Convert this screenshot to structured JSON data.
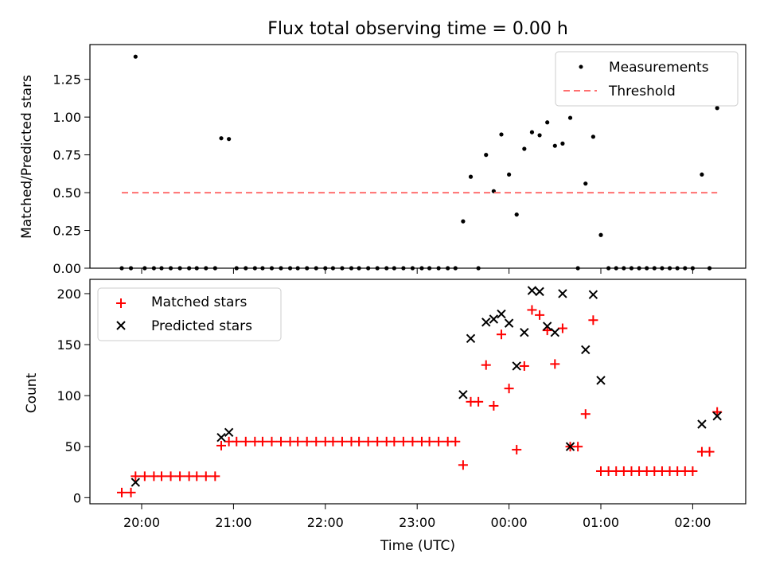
{
  "chart_data": [
    {
      "type": "scatter",
      "title": "Flux total observing time = 0.00 h",
      "xlabel": "",
      "ylabel": "Matched/Predicted stars",
      "ylim": [
        0,
        1.48
      ],
      "yticks": [
        0.0,
        0.25,
        0.5,
        0.75,
        1.0,
        1.25
      ],
      "ytick_labels": [
        "0.00",
        "0.25",
        "0.50",
        "0.75",
        "1.00",
        "1.25"
      ],
      "xticks": [
        "20:00",
        "21:00",
        "22:00",
        "23:00",
        "00:00",
        "01:00",
        "02:00"
      ],
      "legend_position": "top-right",
      "series": [
        {
          "name": "Measurements",
          "kind": "points",
          "color": "#000000",
          "points": [
            [
              "19:47",
              0.0
            ],
            [
              "19:53",
              0.0
            ],
            [
              "19:56",
              1.4
            ],
            [
              "20:02",
              0.0
            ],
            [
              "20:08",
              0.0
            ],
            [
              "20:13",
              0.0
            ],
            [
              "20:19",
              0.0
            ],
            [
              "20:25",
              0.0
            ],
            [
              "20:31",
              0.0
            ],
            [
              "20:36",
              0.0
            ],
            [
              "20:42",
              0.0
            ],
            [
              "20:48",
              0.0
            ],
            [
              "20:52",
              0.86
            ],
            [
              "20:57",
              0.855
            ],
            [
              "21:02",
              0.0
            ],
            [
              "21:08",
              0.0
            ],
            [
              "21:14",
              0.0
            ],
            [
              "21:19",
              0.0
            ],
            [
              "21:25",
              0.0
            ],
            [
              "21:31",
              0.0
            ],
            [
              "21:37",
              0.0
            ],
            [
              "21:42",
              0.0
            ],
            [
              "21:48",
              0.0
            ],
            [
              "21:54",
              0.0
            ],
            [
              "22:00",
              0.0
            ],
            [
              "22:05",
              0.0
            ],
            [
              "22:11",
              0.0
            ],
            [
              "22:17",
              0.0
            ],
            [
              "22:22",
              0.0
            ],
            [
              "22:28",
              0.0
            ],
            [
              "22:34",
              0.0
            ],
            [
              "22:40",
              0.0
            ],
            [
              "22:45",
              0.0
            ],
            [
              "22:51",
              0.0
            ],
            [
              "22:57",
              0.0
            ],
            [
              "23:03",
              0.0
            ],
            [
              "23:08",
              0.0
            ],
            [
              "23:14",
              0.0
            ],
            [
              "23:20",
              0.0
            ],
            [
              "23:25",
              0.0
            ],
            [
              "23:30",
              0.31
            ],
            [
              "23:35",
              0.605
            ],
            [
              "23:40",
              0.0
            ],
            [
              "23:45",
              0.75
            ],
            [
              "23:50",
              0.51
            ],
            [
              "23:55",
              0.885
            ],
            [
              "00:00",
              0.62
            ],
            [
              "00:05",
              0.355
            ],
            [
              "00:10",
              0.79
            ],
            [
              "00:15",
              0.9
            ],
            [
              "00:20",
              0.88
            ],
            [
              "00:25",
              0.965
            ],
            [
              "00:30",
              0.81
            ],
            [
              "00:35",
              0.825
            ],
            [
              "00:40",
              0.995
            ],
            [
              "00:45",
              0.0
            ],
            [
              "00:50",
              0.56
            ],
            [
              "00:55",
              0.87
            ],
            [
              "01:00",
              0.22
            ],
            [
              "01:05",
              0.0
            ],
            [
              "01:10",
              0.0
            ],
            [
              "01:15",
              0.0
            ],
            [
              "01:20",
              0.0
            ],
            [
              "01:25",
              0.0
            ],
            [
              "01:30",
              0.0
            ],
            [
              "01:35",
              0.0
            ],
            [
              "01:40",
              0.0
            ],
            [
              "01:45",
              0.0
            ],
            [
              "01:50",
              0.0
            ],
            [
              "01:55",
              0.0
            ],
            [
              "02:00",
              0.0
            ],
            [
              "02:06",
              0.62
            ],
            [
              "02:11",
              0.0
            ],
            [
              "02:16",
              1.06
            ]
          ]
        },
        {
          "name": "Threshold",
          "kind": "dashed-line",
          "color": "#ff7070",
          "points": [
            [
              "19:47",
              0.5
            ],
            [
              "02:16",
              0.5
            ]
          ]
        }
      ]
    },
    {
      "type": "scatter",
      "title": "",
      "xlabel": "Time (UTC)",
      "ylabel": "Count",
      "ylim": [
        -6,
        214
      ],
      "yticks": [
        0,
        50,
        100,
        150,
        200
      ],
      "ytick_labels": [
        "0",
        "50",
        "100",
        "150",
        "200"
      ],
      "xticks": [
        "20:00",
        "21:00",
        "22:00",
        "23:00",
        "00:00",
        "01:00",
        "02:00"
      ],
      "legend_position": "top-left",
      "series": [
        {
          "name": "Matched stars",
          "kind": "plus",
          "color": "#ff0000",
          "points": [
            [
              "19:47",
              5
            ],
            [
              "19:53",
              5
            ],
            [
              "19:56",
              21
            ],
            [
              "20:02",
              21
            ],
            [
              "20:08",
              21
            ],
            [
              "20:13",
              21
            ],
            [
              "20:19",
              21
            ],
            [
              "20:25",
              21
            ],
            [
              "20:31",
              21
            ],
            [
              "20:36",
              21
            ],
            [
              "20:42",
              21
            ],
            [
              "20:48",
              21
            ],
            [
              "20:52",
              51
            ],
            [
              "20:57",
              55
            ],
            [
              "21:02",
              55
            ],
            [
              "21:08",
              55
            ],
            [
              "21:14",
              55
            ],
            [
              "21:19",
              55
            ],
            [
              "21:25",
              55
            ],
            [
              "21:31",
              55
            ],
            [
              "21:37",
              55
            ],
            [
              "21:42",
              55
            ],
            [
              "21:48",
              55
            ],
            [
              "21:54",
              55
            ],
            [
              "22:00",
              55
            ],
            [
              "22:05",
              55
            ],
            [
              "22:11",
              55
            ],
            [
              "22:17",
              55
            ],
            [
              "22:22",
              55
            ],
            [
              "22:28",
              55
            ],
            [
              "22:34",
              55
            ],
            [
              "22:40",
              55
            ],
            [
              "22:45",
              55
            ],
            [
              "22:51",
              55
            ],
            [
              "22:57",
              55
            ],
            [
              "23:03",
              55
            ],
            [
              "23:08",
              55
            ],
            [
              "23:14",
              55
            ],
            [
              "23:20",
              55
            ],
            [
              "23:25",
              55
            ],
            [
              "23:30",
              32
            ],
            [
              "23:35",
              94
            ],
            [
              "23:40",
              94
            ],
            [
              "23:45",
              130
            ],
            [
              "23:50",
              90
            ],
            [
              "23:55",
              160
            ],
            [
              "00:00",
              107
            ],
            [
              "00:05",
              47
            ],
            [
              "00:10",
              129
            ],
            [
              "00:15",
              184
            ],
            [
              "00:20",
              179
            ],
            [
              "00:25",
              164
            ],
            [
              "00:30",
              131
            ],
            [
              "00:35",
              166
            ],
            [
              "00:40",
              50
            ],
            [
              "00:45",
              50
            ],
            [
              "00:50",
              82
            ],
            [
              "00:55",
              174
            ],
            [
              "01:00",
              26
            ],
            [
              "01:05",
              26
            ],
            [
              "01:10",
              26
            ],
            [
              "01:15",
              26
            ],
            [
              "01:20",
              26
            ],
            [
              "01:25",
              26
            ],
            [
              "01:30",
              26
            ],
            [
              "01:35",
              26
            ],
            [
              "01:40",
              26
            ],
            [
              "01:45",
              26
            ],
            [
              "01:50",
              26
            ],
            [
              "01:55",
              26
            ],
            [
              "02:00",
              26
            ],
            [
              "02:06",
              45
            ],
            [
              "02:11",
              45
            ],
            [
              "02:16",
              84
            ]
          ]
        },
        {
          "name": "Predicted stars",
          "kind": "cross",
          "color": "#000000",
          "points": [
            [
              "19:56",
              15
            ],
            [
              "20:52",
              59
            ],
            [
              "20:57",
              64
            ],
            [
              "23:30",
              101
            ],
            [
              "23:35",
              156
            ],
            [
              "23:45",
              172
            ],
            [
              "23:50",
              175
            ],
            [
              "23:55",
              180
            ],
            [
              "00:00",
              171
            ],
            [
              "00:05",
              129
            ],
            [
              "00:10",
              162
            ],
            [
              "00:15",
              203
            ],
            [
              "00:20",
              202
            ],
            [
              "00:25",
              168
            ],
            [
              "00:30",
              162
            ],
            [
              "00:35",
              200
            ],
            [
              "00:40",
              50
            ],
            [
              "00:50",
              145
            ],
            [
              "00:55",
              199
            ],
            [
              "01:00",
              115
            ],
            [
              "02:06",
              72
            ],
            [
              "02:16",
              80
            ]
          ]
        }
      ]
    }
  ]
}
